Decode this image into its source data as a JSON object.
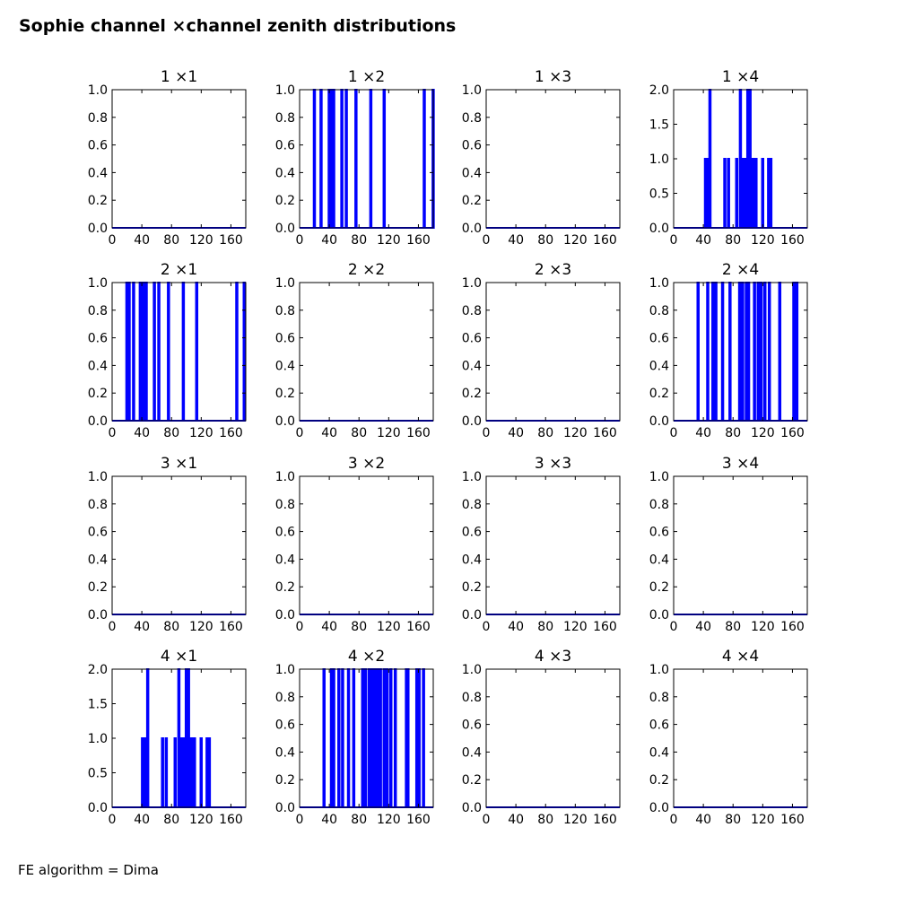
{
  "figure": {
    "title": "Sophie channel ×channel zenith distributions",
    "footer": "FE algorithm = Dima"
  },
  "colors": {
    "series": "#0000ff",
    "axes": "#000000",
    "background": "#ffffff"
  },
  "chart_data": [
    {
      "type": "bar",
      "title": "1 ×1",
      "xlim": [
        0,
        180
      ],
      "ylim": [
        0,
        1.0
      ],
      "xticks": [
        "0",
        "40",
        "80",
        "120",
        "160"
      ],
      "yticks": [
        "0.0",
        "0.2",
        "0.4",
        "0.6",
        "0.8",
        "1.0"
      ],
      "x": [],
      "values": []
    },
    {
      "type": "bar",
      "title": "1 ×2",
      "xlim": [
        0,
        180
      ],
      "ylim": [
        0,
        1.0
      ],
      "xticks": [
        "0",
        "40",
        "80",
        "120",
        "160"
      ],
      "yticks": [
        "0.0",
        "0.2",
        "0.4",
        "0.6",
        "0.8",
        "1.0"
      ],
      "x": [
        19,
        28,
        39,
        42,
        45,
        56,
        62,
        75,
        95,
        113,
        167,
        179
      ],
      "values": [
        1,
        1,
        1,
        1,
        1,
        1,
        1,
        1,
        1,
        1,
        1,
        1
      ]
    },
    {
      "type": "bar",
      "title": "1 ×3",
      "xlim": [
        0,
        180
      ],
      "ylim": [
        0,
        1.0
      ],
      "xticks": [
        "0",
        "40",
        "80",
        "120",
        "160"
      ],
      "yticks": [
        "0.0",
        "0.2",
        "0.4",
        "0.6",
        "0.8",
        "1.0"
      ],
      "x": [],
      "values": []
    },
    {
      "type": "bar",
      "title": "1 ×4",
      "xlim": [
        0,
        180
      ],
      "ylim": [
        0,
        2.0
      ],
      "xticks": [
        "0",
        "40",
        "80",
        "120",
        "160"
      ],
      "yticks": [
        "0.0",
        "0.5",
        "1.0",
        "1.5",
        "2.0"
      ],
      "x": [
        42,
        45,
        48,
        68,
        73,
        84,
        89,
        92,
        95,
        99,
        102,
        106,
        110,
        119,
        127,
        130
      ],
      "values": [
        1,
        1,
        2,
        1,
        1,
        1,
        2,
        1,
        1,
        2,
        2,
        1,
        1,
        1,
        1,
        1
      ]
    },
    {
      "type": "bar",
      "title": "2 ×1",
      "xlim": [
        0,
        180
      ],
      "ylim": [
        0,
        1.0
      ],
      "xticks": [
        "0",
        "40",
        "80",
        "120",
        "160"
      ],
      "yticks": [
        "0.0",
        "0.2",
        "0.4",
        "0.6",
        "0.8",
        "1.0"
      ],
      "x": [
        19,
        22,
        28,
        37,
        39,
        42,
        45,
        56,
        62,
        75,
        95,
        113,
        167,
        177
      ],
      "values": [
        1,
        1,
        1,
        1,
        1,
        1,
        1,
        1,
        1,
        1,
        1,
        1,
        1,
        1
      ]
    },
    {
      "type": "bar",
      "title": "2 ×2",
      "xlim": [
        0,
        180
      ],
      "ylim": [
        0,
        1.0
      ],
      "xticks": [
        "0",
        "40",
        "80",
        "120",
        "160"
      ],
      "yticks": [
        "0.0",
        "0.2",
        "0.4",
        "0.6",
        "0.8",
        "1.0"
      ],
      "x": [],
      "values": []
    },
    {
      "type": "bar",
      "title": "2 ×3",
      "xlim": [
        0,
        180
      ],
      "ylim": [
        0,
        1.0
      ],
      "xticks": [
        "0",
        "40",
        "80",
        "120",
        "160"
      ],
      "yticks": [
        "0.0",
        "0.2",
        "0.4",
        "0.6",
        "0.8",
        "1.0"
      ],
      "x": [],
      "values": []
    },
    {
      "type": "bar",
      "title": "2 ×4",
      "xlim": [
        0,
        180
      ],
      "ylim": [
        0,
        1.0
      ],
      "xticks": [
        "0",
        "40",
        "80",
        "120",
        "160"
      ],
      "yticks": [
        "0.0",
        "0.2",
        "0.4",
        "0.6",
        "0.8",
        "1.0"
      ],
      "x": [
        32,
        45,
        52,
        56,
        65,
        75,
        88,
        92,
        97,
        100,
        108,
        113,
        117,
        122,
        128,
        142,
        161,
        165
      ],
      "values": [
        1,
        1,
        1,
        1,
        1,
        1,
        1,
        1,
        1,
        1,
        1,
        1,
        1,
        1,
        1,
        1,
        1,
        1
      ]
    },
    {
      "type": "bar",
      "title": "3 ×1",
      "xlim": [
        0,
        180
      ],
      "ylim": [
        0,
        1.0
      ],
      "xticks": [
        "0",
        "40",
        "80",
        "120",
        "160"
      ],
      "yticks": [
        "0.0",
        "0.2",
        "0.4",
        "0.6",
        "0.8",
        "1.0"
      ],
      "x": [],
      "values": []
    },
    {
      "type": "bar",
      "title": "3 ×2",
      "xlim": [
        0,
        180
      ],
      "ylim": [
        0,
        1.0
      ],
      "xticks": [
        "0",
        "40",
        "80",
        "120",
        "160"
      ],
      "yticks": [
        "0.0",
        "0.2",
        "0.4",
        "0.6",
        "0.8",
        "1.0"
      ],
      "x": [],
      "values": []
    },
    {
      "type": "bar",
      "title": "3 ×3",
      "xlim": [
        0,
        180
      ],
      "ylim": [
        0,
        1.0
      ],
      "xticks": [
        "0",
        "40",
        "80",
        "120",
        "160"
      ],
      "yticks": [
        "0.0",
        "0.2",
        "0.4",
        "0.6",
        "0.8",
        "1.0"
      ],
      "x": [],
      "values": []
    },
    {
      "type": "bar",
      "title": "3 ×4",
      "xlim": [
        0,
        180
      ],
      "ylim": [
        0,
        1.0
      ],
      "xticks": [
        "0",
        "40",
        "80",
        "120",
        "160"
      ],
      "yticks": [
        "0.0",
        "0.2",
        "0.4",
        "0.6",
        "0.8",
        "1.0"
      ],
      "x": [],
      "values": []
    },
    {
      "type": "bar",
      "title": "4 ×1",
      "xlim": [
        0,
        180
      ],
      "ylim": [
        0,
        2.0
      ],
      "xticks": [
        "0",
        "40",
        "80",
        "120",
        "160"
      ],
      "yticks": [
        "0.0",
        "0.5",
        "1.0",
        "1.5",
        "2.0"
      ],
      "x": [
        40,
        43,
        47,
        67,
        72,
        84,
        89,
        92,
        95,
        99,
        102,
        106,
        110,
        119,
        127,
        130
      ],
      "values": [
        1,
        1,
        2,
        1,
        1,
        1,
        2,
        1,
        1,
        2,
        2,
        1,
        1,
        1,
        1,
        1
      ]
    },
    {
      "type": "bar",
      "title": "4 ×2",
      "xlim": [
        0,
        180
      ],
      "ylim": [
        0,
        1.0
      ],
      "xticks": [
        "0",
        "40",
        "80",
        "120",
        "160"
      ],
      "yticks": [
        "0.0",
        "0.2",
        "0.4",
        "0.6",
        "0.8",
        "1.0"
      ],
      "x": [
        32,
        42,
        45,
        52,
        57,
        65,
        72,
        84,
        88,
        93,
        97,
        100,
        104,
        108,
        113,
        117,
        122,
        128,
        143,
        145,
        157,
        160,
        166
      ],
      "values": [
        1,
        1,
        1,
        1,
        1,
        1,
        1,
        1,
        1,
        1,
        1,
        1,
        1,
        1,
        1,
        1,
        1,
        1,
        1,
        1,
        1,
        1,
        1
      ]
    },
    {
      "type": "bar",
      "title": "4 ×3",
      "xlim": [
        0,
        180
      ],
      "ylim": [
        0,
        1.0
      ],
      "xticks": [
        "0",
        "40",
        "80",
        "120",
        "160"
      ],
      "yticks": [
        "0.0",
        "0.2",
        "0.4",
        "0.6",
        "0.8",
        "1.0"
      ],
      "x": [],
      "values": []
    },
    {
      "type": "bar",
      "title": "4 ×4",
      "xlim": [
        0,
        180
      ],
      "ylim": [
        0,
        1.0
      ],
      "xticks": [
        "0",
        "40",
        "80",
        "120",
        "160"
      ],
      "yticks": [
        "0.0",
        "0.2",
        "0.4",
        "0.6",
        "0.8",
        "1.0"
      ],
      "x": [],
      "values": []
    }
  ]
}
